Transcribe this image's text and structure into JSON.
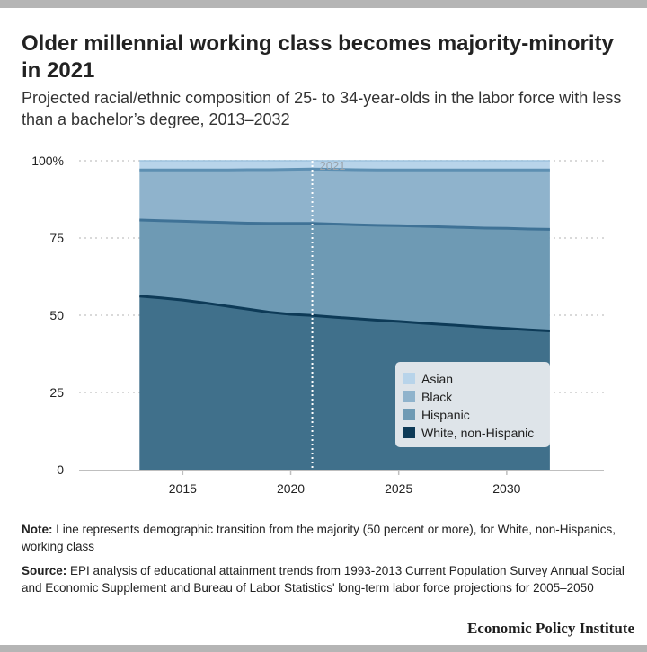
{
  "title": "Older millennial working class becomes majority-minority in 2021",
  "subtitle": "Projected racial/ethnic composition of 25- to 34-year-olds in the labor force with less than a bachelor’s degree, 2013–2032",
  "note": {
    "label": "Note:",
    "text": "Line represents demographic transition from the majority (50 percent or more), for White, non-Hispanics, working class"
  },
  "source": {
    "label": "Source:",
    "text": "EPI analysis of educational attainment trends from 1993-2013 Current Population Survey Annual Social and Economic Supplement and Bureau of Labor Statistics' long-term labor force projections for 2005–2050"
  },
  "brand": "Economic Policy Institute",
  "colors": {
    "asian": "#b8d4ea",
    "black": "#8fb3cc",
    "hispanic": "#6e9ab4",
    "white": "#40708b",
    "asian_line": "#9cc2de",
    "black_line": "#5d8fb2",
    "hispanic_line": "#3f7296",
    "white_line": "#0d3a57",
    "grid": "#d9d9d9",
    "annotation": "#ffffff"
  },
  "chart_data": {
    "type": "area",
    "stacked": true,
    "x": [
      2013,
      2014,
      2015,
      2016,
      2017,
      2018,
      2019,
      2020,
      2021,
      2022,
      2023,
      2024,
      2025,
      2026,
      2027,
      2028,
      2029,
      2030,
      2031,
      2032
    ],
    "series": [
      {
        "name": "White, non-Hispanic",
        "values": [
          56.2,
          55.6,
          54.9,
          54.0,
          53.0,
          52.0,
          51.0,
          50.3,
          49.9,
          49.4,
          48.9,
          48.4,
          48.0,
          47.5,
          47.0,
          46.6,
          46.1,
          45.7,
          45.3,
          44.9
        ]
      },
      {
        "name": "Hispanic",
        "values": [
          24.6,
          25.0,
          25.5,
          26.2,
          27.0,
          27.8,
          28.7,
          29.4,
          29.8,
          30.1,
          30.4,
          30.7,
          31.0,
          31.3,
          31.6,
          31.8,
          32.1,
          32.4,
          32.6,
          32.9
        ]
      },
      {
        "name": "Black",
        "values": [
          16.2,
          16.4,
          16.6,
          16.8,
          17.0,
          17.3,
          17.4,
          17.5,
          17.6,
          17.7,
          17.8,
          17.9,
          18.0,
          18.2,
          18.4,
          18.6,
          18.8,
          18.9,
          19.1,
          19.2
        ]
      },
      {
        "name": "Asian",
        "values": [
          3.0,
          3.0,
          3.0,
          3.0,
          3.0,
          2.9,
          2.9,
          2.8,
          2.7,
          2.8,
          2.9,
          3.0,
          3.0,
          3.0,
          3.0,
          3.0,
          3.0,
          3.0,
          3.0,
          3.0
        ]
      }
    ],
    "ylim": [
      0,
      100
    ],
    "yticks": [
      0,
      25,
      50,
      75,
      100
    ],
    "ytick_labels": [
      "0",
      "25",
      "50",
      "75",
      "100%"
    ],
    "xticks": [
      2015,
      2020,
      2025,
      2030
    ],
    "xtick_labels": [
      "2015",
      "2020",
      "2025",
      "2030"
    ],
    "xlim": [
      2010.2,
      2034.5
    ],
    "grid": true,
    "legend_position": "bottom-right",
    "legend": [
      "Asian",
      "Black",
      "Hispanic",
      "White, non-Hispanic"
    ],
    "annotation": {
      "x": 2021,
      "label": "2021"
    }
  }
}
